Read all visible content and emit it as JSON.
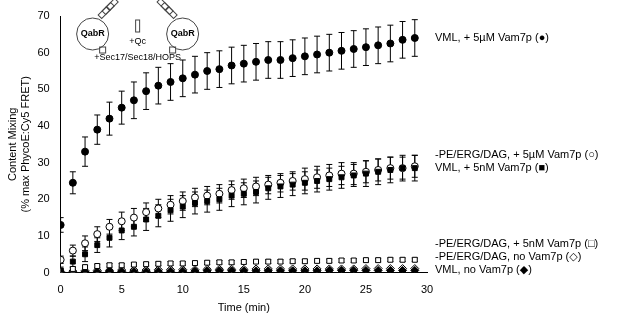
{
  "chart_data": {
    "type": "scatter",
    "x_label": "Time (min)",
    "y_label": [
      "Content Mixing",
      "(% max PhycoE:Cy5 FRET)"
    ],
    "annotations": [
      "QabR",
      "QabR",
      "+Qc",
      "+Sec17/Sec18/HOPS"
    ],
    "x": [
      0,
      1,
      2,
      3,
      4,
      5,
      6,
      7,
      8,
      9,
      10,
      11,
      12,
      13,
      14,
      15,
      16,
      17,
      18,
      19,
      20,
      21,
      22,
      23,
      24,
      25,
      26,
      27,
      28,
      29
    ],
    "xlim": [
      0,
      30
    ],
    "xticks": [
      0,
      5,
      10,
      15,
      20,
      25,
      30
    ],
    "ylim": [
      0,
      70
    ],
    "yticks": [
      0,
      10,
      20,
      30,
      40,
      50,
      60,
      70
    ],
    "grid": false,
    "series": [
      {
        "name": "VML, + 5µM Vam7p (●)",
        "color": "#000000",
        "marker": "circle",
        "values": [
          13,
          24.5,
          33,
          39,
          42,
          45,
          47,
          49.5,
          51,
          52,
          53,
          54,
          55,
          55.5,
          56.5,
          57,
          57.5,
          58,
          58,
          58.5,
          59,
          59.5,
          60,
          60.5,
          61,
          61.5,
          62,
          62.5,
          63.5,
          64
        ],
        "errors": [
          2,
          3,
          4,
          4,
          4.5,
          4.5,
          5,
          5,
          5,
          5,
          5,
          5,
          5,
          5,
          5,
          5,
          5,
          5,
          5,
          5,
          5,
          5,
          5,
          5,
          5,
          5,
          5,
          5,
          5,
          5
        ]
      },
      {
        "name": "VML, + 5nM Vam7p (■)",
        "color": "#000000",
        "marker": "square",
        "values": [
          0.5,
          3,
          5,
          7.5,
          9.5,
          11.5,
          12.5,
          14.5,
          15.5,
          17,
          18,
          19,
          19.5,
          20,
          21,
          21.5,
          22,
          23,
          23.5,
          24,
          24.5,
          25,
          25.5,
          26,
          26.5,
          27,
          27.5,
          28,
          28.5,
          28.5
        ],
        "errors": [
          1,
          1.5,
          2,
          2,
          2.5,
          2.5,
          2.5,
          3,
          3,
          3,
          3,
          3,
          3,
          3,
          3,
          3,
          3,
          3,
          3,
          3,
          3,
          3,
          3,
          3,
          3,
          3.5,
          3.5,
          3.5,
          3.5,
          3.5
        ]
      },
      {
        "name": "-PE/ERG/DAG, + 5µM Vam7p (○)",
        "color": "#000000",
        "marker": "circle-open",
        "values": [
          3.5,
          6,
          8,
          10.5,
          12.5,
          14,
          15,
          16.5,
          17.5,
          18.5,
          19.5,
          20.5,
          21,
          21.5,
          22.5,
          23,
          23.5,
          24,
          24.5,
          25,
          25.5,
          26,
          26.5,
          27,
          27,
          27.5,
          28,
          28.5,
          28.5,
          29
        ],
        "errors": [
          1,
          1.5,
          2,
          2,
          2,
          2.5,
          2.5,
          2.5,
          2.5,
          2.5,
          2.5,
          2.5,
          2.5,
          2.5,
          2.5,
          2.5,
          2.5,
          2.5,
          2.5,
          2.5,
          3,
          3,
          3,
          3,
          3,
          3,
          3,
          3,
          3,
          3
        ]
      },
      {
        "name": "-PE/ERG/DAG, + 5nM Vam7p (□)",
        "color": "#000000",
        "marker": "square-open",
        "values": [
          0.5,
          1,
          1.5,
          1.8,
          2,
          2,
          2.2,
          2.3,
          2.4,
          2.5,
          2.5,
          2.6,
          2.7,
          2.8,
          2.8,
          2.9,
          3,
          3,
          3,
          3.1,
          3.1,
          3.2,
          3.2,
          3.3,
          3.3,
          3.4,
          3.4,
          3.5,
          3.5,
          3.5
        ],
        "errors": [
          0.5,
          0.5,
          0.5,
          0.5,
          0.5,
          0.5,
          0.5,
          0.5,
          0.5,
          0.5,
          0.5,
          0.5,
          0.5,
          0.5,
          0.5,
          0.5,
          0.5,
          0.5,
          0.5,
          0.5,
          0.5,
          0.5,
          0.5,
          0.5,
          0.5,
          0.5,
          0.5,
          0.5,
          0.5,
          0.5
        ]
      },
      {
        "name": "VML, no Vam7p (◆)",
        "color": "#000000",
        "marker": "diamond",
        "values": [
          0,
          0,
          0.2,
          0.2,
          0.3,
          0.3,
          0.3,
          0.3,
          0.4,
          0.4,
          0.4,
          0.4,
          0.5,
          0.5,
          0.5,
          0.5,
          0.5,
          0.5,
          0.5,
          0.5,
          0.5,
          0.5,
          0.6,
          0.6,
          0.6,
          0.6,
          0.6,
          0.6,
          0.6,
          0.6
        ],
        "errors": [
          0.3,
          0.3,
          0.3,
          0.3,
          0.3,
          0.3,
          0.3,
          0.3,
          0.3,
          0.3,
          0.3,
          0.3,
          0.3,
          0.3,
          0.3,
          0.3,
          0.3,
          0.3,
          0.3,
          0.3,
          0.3,
          0.3,
          0.3,
          0.3,
          0.3,
          0.3,
          0.3,
          0.3,
          0.3,
          0.3
        ]
      },
      {
        "name": "-PE/ERG/DAG, no Vam7p (◇)",
        "color": "#000000",
        "marker": "diamond-open",
        "values": [
          0.3,
          0.4,
          0.5,
          0.6,
          0.6,
          0.7,
          0.7,
          0.7,
          0.8,
          0.8,
          0.8,
          0.8,
          0.9,
          0.9,
          0.9,
          0.9,
          1,
          1,
          1,
          1,
          1,
          1,
          1,
          1,
          1,
          1.1,
          1.1,
          1.1,
          1.1,
          1.1
        ],
        "errors": [
          0.3,
          0.3,
          0.3,
          0.3,
          0.3,
          0.3,
          0.3,
          0.3,
          0.3,
          0.3,
          0.3,
          0.3,
          0.3,
          0.3,
          0.3,
          0.3,
          0.3,
          0.3,
          0.3,
          0.3,
          0.3,
          0.3,
          0.3,
          0.3,
          0.3,
          0.3,
          0.3,
          0.3,
          0.3,
          0.3
        ]
      }
    ]
  }
}
